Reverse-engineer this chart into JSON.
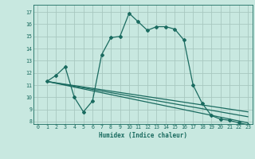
{
  "xlabel": "Humidex (Indice chaleur)",
  "xlim": [
    -0.5,
    23.5
  ],
  "ylim": [
    7.8,
    17.6
  ],
  "xticks": [
    0,
    1,
    2,
    3,
    4,
    5,
    6,
    7,
    8,
    9,
    10,
    11,
    12,
    13,
    14,
    15,
    16,
    17,
    18,
    19,
    20,
    21,
    22,
    23
  ],
  "yticks": [
    8,
    9,
    10,
    11,
    12,
    13,
    14,
    15,
    16,
    17
  ],
  "bg_color": "#c8e8e0",
  "grid_color": "#a8c8c0",
  "line_color": "#1a6b60",
  "lines": [
    {
      "x": [
        1,
        2,
        3,
        4,
        5,
        6,
        7,
        8,
        9,
        10,
        11,
        12,
        13,
        14,
        15,
        16,
        17,
        18,
        19,
        20,
        21,
        22,
        23
      ],
      "y": [
        11.3,
        11.8,
        12.5,
        10.0,
        8.8,
        9.7,
        13.5,
        14.9,
        15.0,
        16.9,
        16.2,
        15.5,
        15.8,
        15.8,
        15.6,
        14.7,
        11.0,
        9.5,
        8.5,
        8.2,
        8.1,
        7.9,
        7.75
      ],
      "has_markers": true
    },
    {
      "x": [
        1,
        23
      ],
      "y": [
        11.3,
        8.8
      ],
      "has_markers": false
    },
    {
      "x": [
        1,
        23
      ],
      "y": [
        11.3,
        8.4
      ],
      "has_markers": false
    },
    {
      "x": [
        1,
        23
      ],
      "y": [
        11.3,
        7.9
      ],
      "has_markers": false
    }
  ]
}
